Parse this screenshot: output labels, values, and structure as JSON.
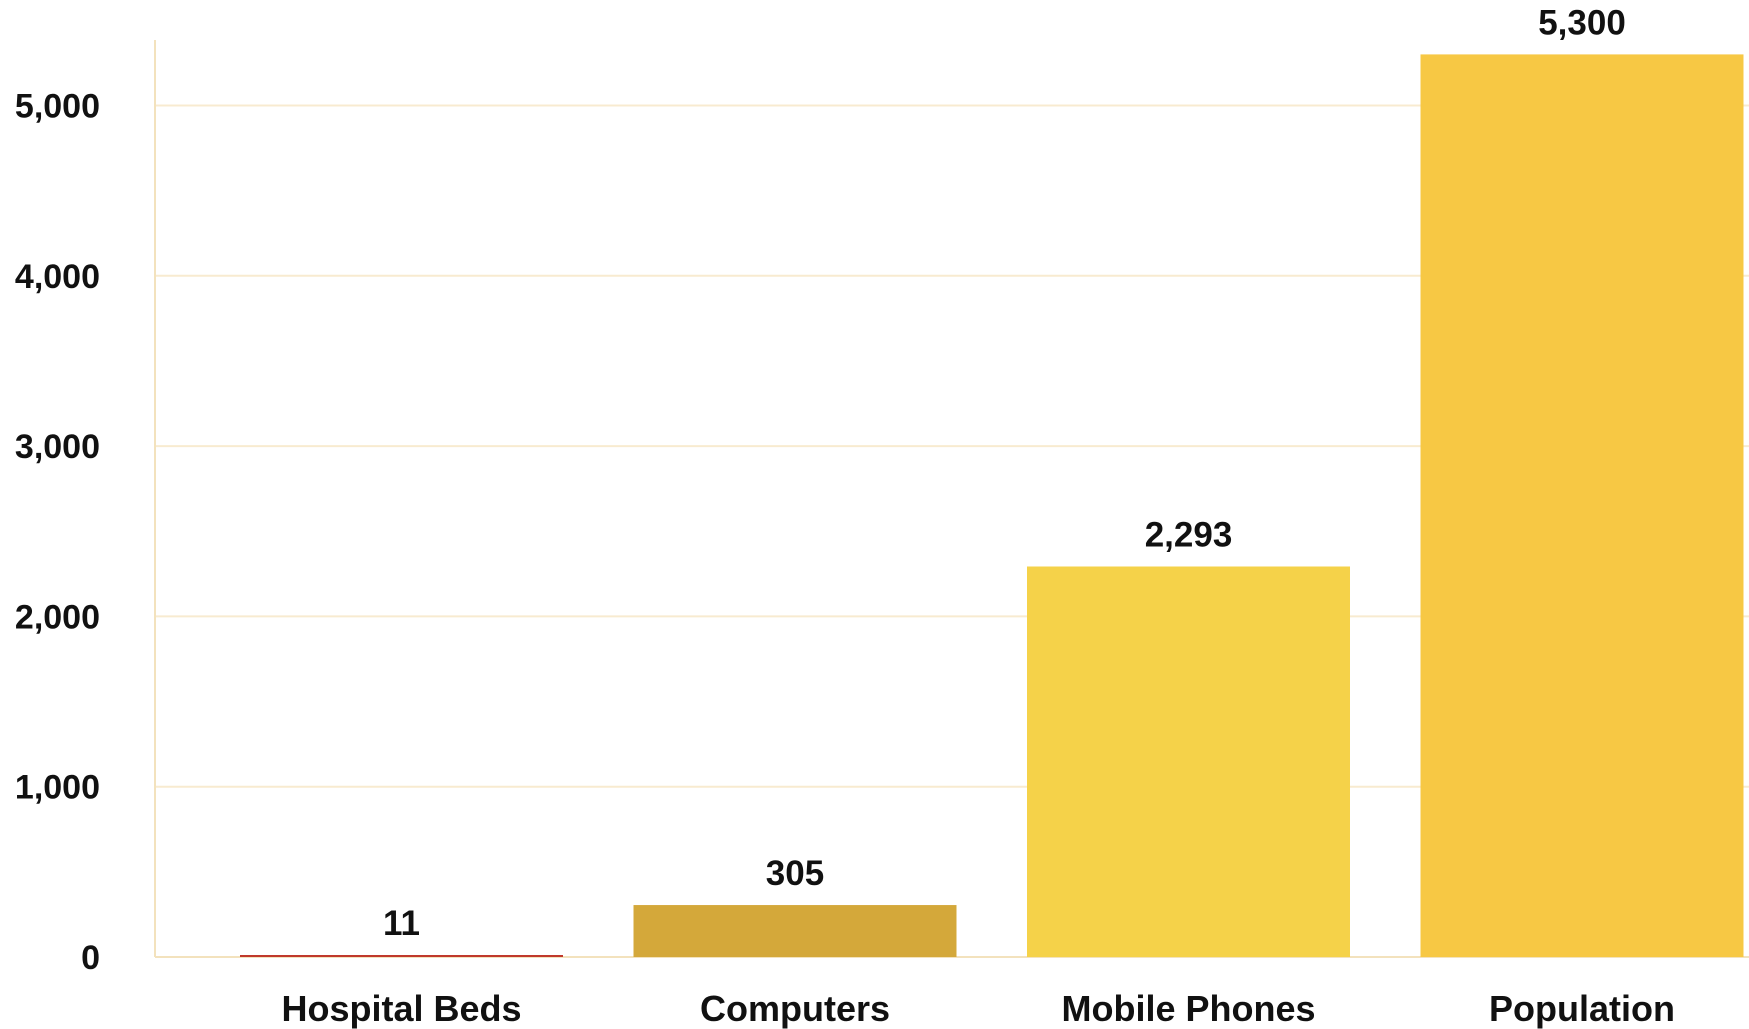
{
  "chart_data": {
    "type": "bar",
    "categories": [
      "Hospital Beds",
      "Computers",
      "Mobile Phones",
      "Population"
    ],
    "values": [
      11,
      305,
      2293,
      5300
    ],
    "data_labels": [
      "11",
      "305",
      "2,293",
      "5,300"
    ],
    "bar_colors": [
      "#c0392b",
      "#d4a83a",
      "#f5d249",
      "#f7c844"
    ],
    "ylim": [
      0,
      5300
    ],
    "yticks": [
      0,
      1000,
      2000,
      3000,
      4000,
      5000
    ],
    "ytick_labels": [
      "0",
      "1,000",
      "2,000",
      "3,000",
      "4,000",
      "5,000"
    ],
    "grid": true,
    "grid_color": "#f8ebd0",
    "axis_color": "#f3e2bd",
    "title": "",
    "xlabel": "",
    "ylabel": ""
  }
}
